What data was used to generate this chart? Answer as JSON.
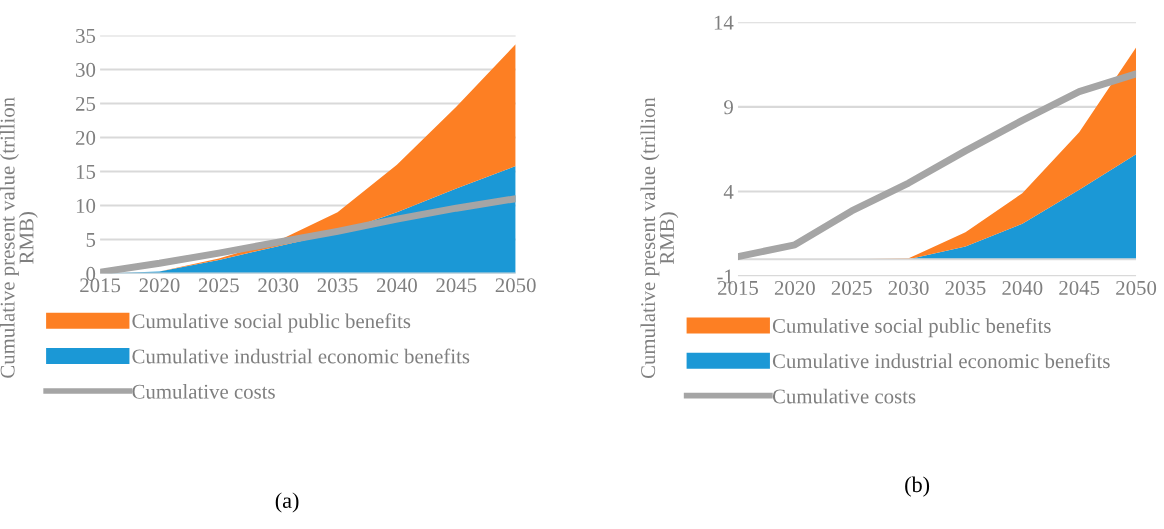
{
  "chart_data": [
    {
      "type": "area",
      "stacked": true,
      "ylabel": "Cumulative present value (trillion\nRMB)",
      "x": [
        2015,
        2020,
        2025,
        2030,
        2035,
        2040,
        2045,
        2050
      ],
      "xlim": [
        2015,
        2050
      ],
      "xticks": [
        2015,
        2020,
        2025,
        2030,
        2035,
        2040,
        2045,
        2050
      ],
      "ylim": [
        0,
        35
      ],
      "yticks": [
        0,
        5,
        10,
        15,
        20,
        25,
        30,
        35
      ],
      "grid": "y",
      "legend": "bottom",
      "annotations": [
        "(a)"
      ],
      "series": [
        {
          "name": "Cumulative industrial economic benefits",
          "color": "#1b98d6",
          "values": [
            0,
            0.3,
            2,
            4,
            6,
            9,
            12.5,
            15.8
          ]
        },
        {
          "name": "Cumulative social public benefits",
          "color": "#fd7f23",
          "values": [
            0,
            0,
            0.2,
            0.8,
            3,
            7,
            12,
            17.9
          ]
        },
        {
          "name": "Cumulative costs",
          "type": "line",
          "color": "#a5a5a5",
          "values": [
            0.2,
            1.5,
            3.0,
            4.6,
            6.2,
            8.0,
            9.6,
            11.0
          ]
        }
      ]
    },
    {
      "type": "area",
      "stacked": true,
      "ylabel": "Cumulative present value (trillion\nRMB)",
      "x": [
        2015,
        2020,
        2025,
        2030,
        2035,
        2040,
        2045,
        2050
      ],
      "xlim": [
        2015,
        2050
      ],
      "xticks": [
        2015,
        2020,
        2025,
        2030,
        2035,
        2040,
        2045,
        2050
      ],
      "ylim": [
        -1,
        14
      ],
      "yticks": [
        -1,
        4,
        9,
        14
      ],
      "grid": "y",
      "legend": "bottom",
      "annotations": [
        "(b)"
      ],
      "series": [
        {
          "name": "Cumulative industrial economic benefits",
          "color": "#1b98d6",
          "values": [
            0,
            0,
            0,
            0,
            0.75,
            2.1,
            4.1,
            6.2
          ]
        },
        {
          "name": "Cumulative social public benefits",
          "color": "#fd7f23",
          "values": [
            0,
            0,
            0,
            0.05,
            0.85,
            1.8,
            3.4,
            6.3
          ]
        },
        {
          "name": "Cumulative costs",
          "type": "line",
          "color": "#a5a5a5",
          "values": [
            0.15,
            0.85,
            2.85,
            4.5,
            6.4,
            8.2,
            9.9,
            10.95
          ]
        }
      ]
    }
  ]
}
